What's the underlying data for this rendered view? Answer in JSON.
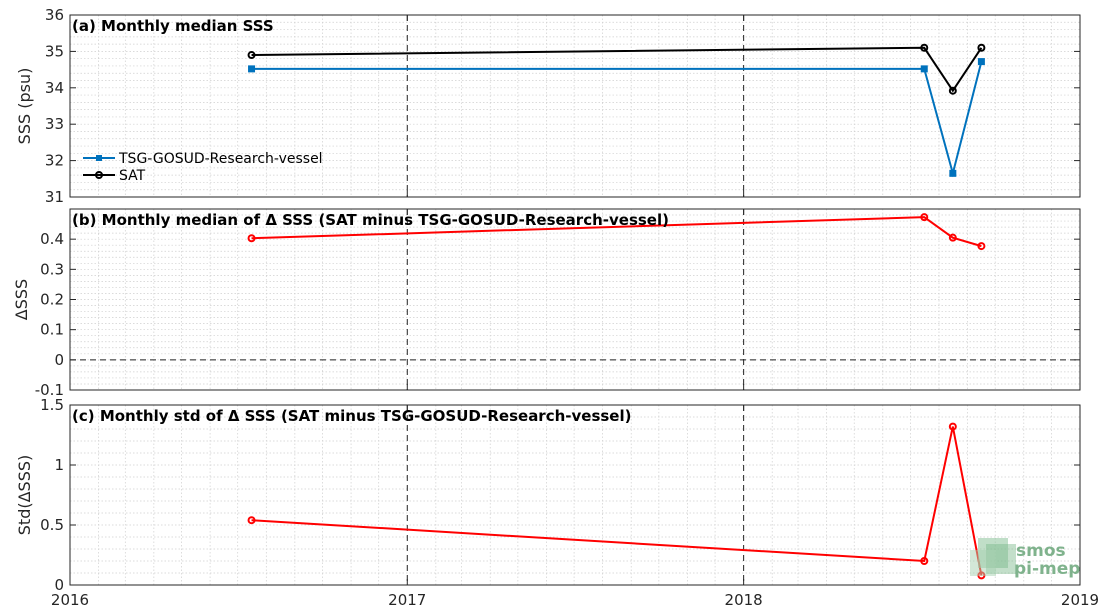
{
  "chart_data": [
    {
      "id": "a",
      "type": "line",
      "title": "(a) Monthly median SSS",
      "xlabel": "",
      "ylabel": "SSS (psu)",
      "ylim": [
        31,
        36
      ],
      "yticks": [
        31,
        32,
        33,
        34,
        35,
        36
      ],
      "ytick_labels": [
        "31",
        "32",
        "33",
        "34",
        "35",
        "36"
      ],
      "legend_position": "bottom-left",
      "series": [
        {
          "name": "TSG-GOSUD-Research-vessel",
          "color": "#0072BD",
          "marker": "square",
          "x": [
            "2016-07-16",
            "2018-07-16",
            "2018-08-16",
            "2018-09-16"
          ],
          "values": [
            34.52,
            34.52,
            31.65,
            34.72
          ]
        },
        {
          "name": "SAT",
          "color": "#000000",
          "marker": "circle",
          "x": [
            "2016-07-16",
            "2018-07-16",
            "2018-08-16",
            "2018-09-16"
          ],
          "values": [
            34.9,
            35.1,
            33.92,
            35.1
          ]
        }
      ]
    },
    {
      "id": "b",
      "type": "line",
      "title": "(b) Monthly median of Δ SSS (SAT minus TSG-GOSUD-Research-vessel)",
      "xlabel": "",
      "ylabel": "ΔSSS",
      "ylim": [
        -0.1,
        0.5
      ],
      "yticks": [
        -0.1,
        0,
        0.1,
        0.2,
        0.3,
        0.4
      ],
      "ytick_labels": [
        "-0.1",
        "0",
        "0.1",
        "0.2",
        "0.3",
        "0.4"
      ],
      "zero_line": true,
      "series": [
        {
          "color": "#FF0000",
          "marker": "circle",
          "x": [
            "2016-07-16",
            "2018-07-16",
            "2018-08-16",
            "2018-09-16"
          ],
          "values": [
            0.403,
            0.473,
            0.405,
            0.377
          ]
        }
      ]
    },
    {
      "id": "c",
      "type": "line",
      "title": "(c) Monthly std of Δ SSS (SAT minus TSG-GOSUD-Research-vessel)",
      "xlabel": "",
      "ylabel": "Std(ΔSSS)",
      "ylim": [
        0,
        1.5
      ],
      "yticks": [
        0,
        0.5,
        1,
        1.5
      ],
      "ytick_labels": [
        "0",
        "0.5",
        "1",
        "1.5"
      ],
      "series": [
        {
          "color": "#FF0000",
          "marker": "circle",
          "x": [
            "2016-07-16",
            "2018-07-16",
            "2018-08-16",
            "2018-09-16"
          ],
          "values": [
            0.54,
            0.2,
            1.32,
            0.08
          ]
        }
      ]
    }
  ],
  "x_axis": {
    "range": [
      "2016-01-01",
      "2019-01-01"
    ],
    "ticks": [
      "2016-01-01",
      "2017-01-01",
      "2018-01-01",
      "2019-01-01"
    ],
    "tick_labels": [
      "2016",
      "2017",
      "2018",
      "2019"
    ],
    "year_markers": [
      "2017-01-01",
      "2018-01-01"
    ]
  },
  "grid": true,
  "watermark": {
    "line1": "smos",
    "line2": "pi-mep",
    "color": "#6aa67a"
  }
}
